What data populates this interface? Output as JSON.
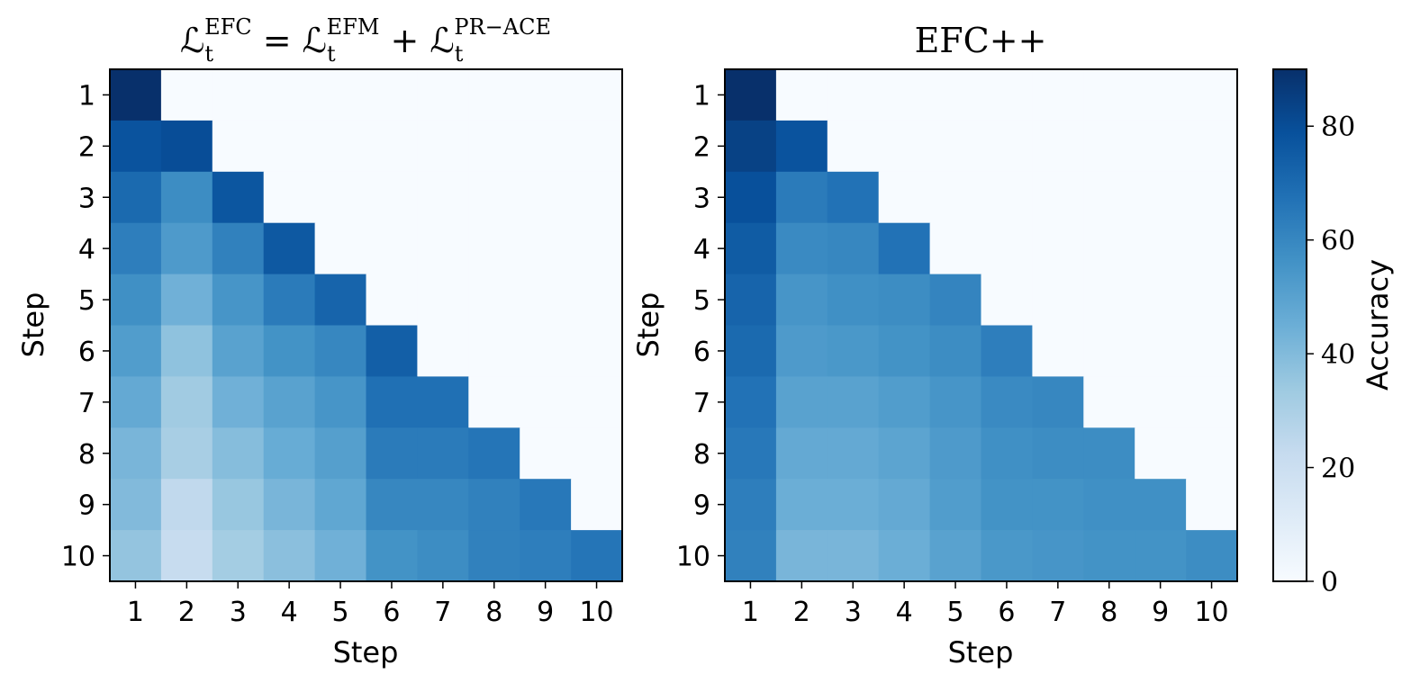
{
  "chart_data": [
    {
      "type": "heatmap",
      "title_parts": [
        {
          "text": "ℒ",
          "style": "base"
        },
        {
          "text": "t",
          "style": "sub"
        },
        {
          "text": "EFC",
          "style": "sup"
        },
        {
          "text": " = ℒ",
          "style": "base"
        },
        {
          "text": "t",
          "style": "sub"
        },
        {
          "text": "EFM",
          "style": "sup"
        },
        {
          "text": " + ℒ",
          "style": "base"
        },
        {
          "text": "t",
          "style": "sub"
        },
        {
          "text": "PR−ACE",
          "style": "sup"
        }
      ],
      "xlabel": "Step",
      "ylabel": "Step",
      "x_ticks": [
        "1",
        "2",
        "3",
        "4",
        "5",
        "6",
        "7",
        "8",
        "9",
        "10"
      ],
      "y_ticks": [
        "1",
        "2",
        "3",
        "4",
        "5",
        "6",
        "7",
        "8",
        "9",
        "10"
      ],
      "values": [
        [
          90,
          0,
          0,
          0,
          0,
          0,
          0,
          0,
          0,
          0
        ],
        [
          78,
          80,
          0,
          0,
          0,
          0,
          0,
          0,
          0,
          0
        ],
        [
          70,
          58,
          77,
          0,
          0,
          0,
          0,
          0,
          0,
          0
        ],
        [
          63,
          53,
          62,
          76,
          0,
          0,
          0,
          0,
          0,
          0
        ],
        [
          57,
          44,
          55,
          64,
          72,
          0,
          0,
          0,
          0,
          0
        ],
        [
          52,
          37,
          50,
          56,
          60,
          74,
          0,
          0,
          0,
          0
        ],
        [
          47,
          33,
          44,
          50,
          55,
          68,
          68,
          0,
          0,
          0
        ],
        [
          42,
          31,
          39,
          46,
          51,
          64,
          64,
          66,
          0,
          0
        ],
        [
          40,
          24,
          35,
          42,
          48,
          60,
          60,
          62,
          65,
          0
        ],
        [
          36,
          22,
          32,
          38,
          44,
          56,
          58,
          62,
          63,
          66
        ]
      ]
    },
    {
      "type": "heatmap",
      "title_parts": [
        {
          "text": "EFC++",
          "style": "base"
        }
      ],
      "xlabel": "Step",
      "ylabel": "Step",
      "x_ticks": [
        "1",
        "2",
        "3",
        "4",
        "5",
        "6",
        "7",
        "8",
        "9",
        "10"
      ],
      "y_ticks": [
        "1",
        "2",
        "3",
        "4",
        "5",
        "6",
        "7",
        "8",
        "9",
        "10"
      ],
      "values": [
        [
          90,
          0,
          0,
          0,
          0,
          0,
          0,
          0,
          0,
          0
        ],
        [
          84,
          78,
          0,
          0,
          0,
          0,
          0,
          0,
          0,
          0
        ],
        [
          79,
          64,
          67,
          0,
          0,
          0,
          0,
          0,
          0,
          0
        ],
        [
          75,
          59,
          60,
          67,
          0,
          0,
          0,
          0,
          0,
          0
        ],
        [
          72,
          55,
          57,
          58,
          61,
          0,
          0,
          0,
          0,
          0
        ],
        [
          70,
          53,
          54,
          56,
          58,
          63,
          0,
          0,
          0,
          0
        ],
        [
          67,
          50,
          50,
          52,
          55,
          59,
          60,
          0,
          0,
          0
        ],
        [
          65,
          47,
          47,
          49,
          53,
          57,
          58,
          58,
          0,
          0
        ],
        [
          63,
          45,
          45,
          47,
          52,
          56,
          56,
          57,
          57,
          0
        ],
        [
          62,
          42,
          42,
          45,
          50,
          54,
          55,
          56,
          56,
          58
        ]
      ]
    }
  ],
  "colorbar": {
    "label": "Accuracy",
    "min": 0,
    "max": 90,
    "ticks": [
      0,
      20,
      40,
      60,
      80
    ],
    "colormap": "Blues",
    "colormap_stops": [
      "#f7fbff",
      "#deebf7",
      "#c6dbef",
      "#9ecae1",
      "#6baed6",
      "#4292c6",
      "#2171b5",
      "#08519c",
      "#08306b"
    ]
  }
}
